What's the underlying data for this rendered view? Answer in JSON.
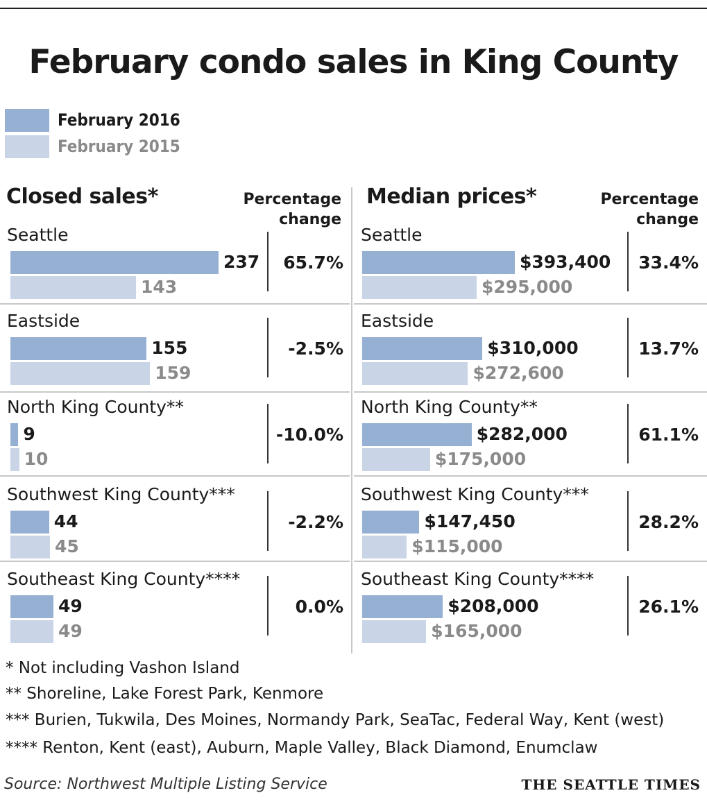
{
  "title": "February condo sales in King County",
  "legend": [
    {
      "label": "February 2016",
      "color": "#96b0d4",
      "text_color": "#1a1a1a"
    },
    {
      "label": "February 2015",
      "color": "#c9d4e7",
      "text_color": "#8a8a8a"
    }
  ],
  "closed_heading": "Closed sales*",
  "median_heading": "Median prices*",
  "pct_heading_line1": "Percentage",
  "pct_heading_line2": "change",
  "chart_data": [
    {
      "type": "bar",
      "title": "Closed sales*",
      "orientation": "horizontal",
      "categories": [
        "Seattle",
        "Eastside",
        "North King County**",
        "Southwest King County***",
        "Southeast King County****"
      ],
      "series": [
        {
          "name": "February 2016",
          "values": [
            237,
            155,
            9,
            44,
            49
          ],
          "labels": [
            "237",
            "155",
            "9",
            "44",
            "49"
          ]
        },
        {
          "name": "February 2015",
          "values": [
            143,
            159,
            10,
            45,
            49
          ],
          "labels": [
            "143",
            "159",
            "10",
            "45",
            "49"
          ]
        }
      ],
      "percentage_change": [
        "65.7%",
        "-2.5%",
        "-10.0%",
        "-2.2%",
        "0.0%"
      ]
    },
    {
      "type": "bar",
      "title": "Median prices*",
      "orientation": "horizontal",
      "categories": [
        "Seattle",
        "Eastside",
        "North King County**",
        "Southwest King County***",
        "Southeast King County****"
      ],
      "series": [
        {
          "name": "February 2016",
          "values": [
            393400,
            310000,
            282000,
            147450,
            208000
          ],
          "labels": [
            "$393,400",
            "$310,000",
            "$282,000",
            "$147,450",
            "$208,000"
          ]
        },
        {
          "name": "February 2015",
          "values": [
            295000,
            272600,
            175000,
            115000,
            165000
          ],
          "labels": [
            "$295,000",
            "$272,600",
            "$175,000",
            "$115,000",
            "$165,000"
          ]
        }
      ],
      "percentage_change": [
        "33.4%",
        "13.7%",
        "61.1%",
        "28.2%",
        "26.1%"
      ]
    }
  ],
  "notes": [
    "* Not including Vashon Island",
    "**  Shoreline, Lake Forest Park, Kenmore",
    "*** Burien, Tukwila, Des Moines, Normandy Park, SeaTac, Federal Way, Kent (west)",
    "**** Renton, Kent (east), Auburn, Maple Valley, Black Diamond, Enumclaw"
  ],
  "source": "Source: Northwest Multiple Listing Service",
  "brand": "THE SEATTLE TIMES"
}
